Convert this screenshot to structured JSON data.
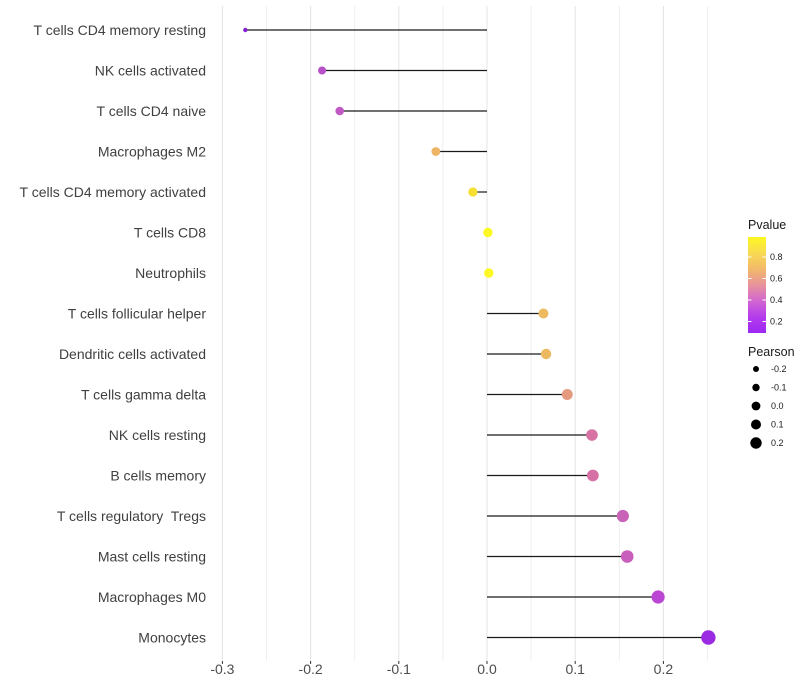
{
  "chart_data": {
    "type": "scatter",
    "style": "lollipop",
    "title": "",
    "xlabel": "",
    "ylabel": "",
    "xlim": [
      -0.31,
      0.262
    ],
    "x_major_ticks": [
      -0.3,
      -0.2,
      -0.1,
      0.0,
      0.1,
      0.2
    ],
    "x_major_tick_labels": [
      "-0.3",
      "-0.2",
      "-0.1",
      "0.0",
      "0.1",
      "0.2"
    ],
    "x_grid_step": 0.05,
    "grid_on": true,
    "rows": [
      {
        "label": "T cells CD4 memory resting",
        "pearson": -0.274,
        "pvalue": 0.1,
        "color": "#8520d8",
        "radius": 2.2
      },
      {
        "label": "NK cells activated",
        "pearson": -0.187,
        "pvalue": 0.3,
        "color": "#b750c8",
        "radius": 4.0
      },
      {
        "label": "T cells CD4 naive",
        "pearson": -0.167,
        "pvalue": 0.32,
        "color": "#c158c5",
        "radius": 4.3
      },
      {
        "label": "Macrophages M2",
        "pearson": -0.058,
        "pvalue": 0.78,
        "color": "#ecb464",
        "radius": 4.4
      },
      {
        "label": "T cells CD4 memory activated",
        "pearson": -0.016,
        "pvalue": 0.93,
        "color": "#f5e032",
        "radius": 4.6
      },
      {
        "label": "T cells CD8",
        "pearson": 0.001,
        "pvalue": 0.99,
        "color": "#fdf822",
        "radius": 4.7
      },
      {
        "label": "Neutrophils",
        "pearson": 0.002,
        "pvalue": 0.99,
        "color": "#fdf822",
        "radius": 4.7
      },
      {
        "label": "T cells follicular helper",
        "pearson": 0.064,
        "pvalue": 0.77,
        "color": "#edba60",
        "radius": 5.0
      },
      {
        "label": "Dendritic cells activated",
        "pearson": 0.067,
        "pvalue": 0.76,
        "color": "#ecb962",
        "radius": 5.2
      },
      {
        "label": "T cells gamma delta",
        "pearson": 0.091,
        "pvalue": 0.63,
        "color": "#e59a80",
        "radius": 5.5
      },
      {
        "label": "NK cells resting",
        "pearson": 0.119,
        "pvalue": 0.48,
        "color": "#d773a4",
        "radius": 5.8
      },
      {
        "label": "B cells memory",
        "pearson": 0.12,
        "pvalue": 0.47,
        "color": "#d671a6",
        "radius": 5.9
      },
      {
        "label": "T cells regulatory  Tregs",
        "pearson": 0.154,
        "pvalue": 0.38,
        "color": "#c963b7",
        "radius": 6.1
      },
      {
        "label": "Mast cells resting",
        "pearson": 0.159,
        "pvalue": 0.36,
        "color": "#c95fbc",
        "radius": 6.3
      },
      {
        "label": "Macrophages M0",
        "pearson": 0.194,
        "pvalue": 0.27,
        "color": "#ba46d3",
        "radius": 6.6
      },
      {
        "label": "Monocytes",
        "pearson": 0.251,
        "pvalue": 0.14,
        "color": "#9b2be2",
        "radius": 7.2
      }
    ],
    "legend": {
      "position": "right",
      "pvalue": {
        "title": "Pvalue",
        "tick_labels": [
          "0.8",
          "0.6",
          "0.4",
          "0.2"
        ],
        "gradient_top_to_bottom": [
          "#fdf821",
          "#f8da52",
          "#f2b96a",
          "#e8939c",
          "#d166d1",
          "#b43cec",
          "#9d28f2"
        ]
      },
      "pearson": {
        "title": "Pearson",
        "items": [
          {
            "label": "-0.2",
            "radius": 3.0
          },
          {
            "label": "-0.1",
            "radius": 3.7
          },
          {
            "label": "0.0",
            "radius": 4.4
          },
          {
            "label": "0.1",
            "radius": 5.0
          },
          {
            "label": "0.2",
            "radius": 5.7
          }
        ],
        "dot_color": "#000000"
      }
    },
    "colors": {
      "background": "#ffffff",
      "grid_major": "#e4e4e4",
      "grid_minor": "#efefef",
      "stem": "#1a1a1a",
      "axis_text": "#4d4d4d",
      "y_label_text": "#404040",
      "legend_text": "#1a1a1a",
      "tick_mark": "#333333"
    }
  }
}
